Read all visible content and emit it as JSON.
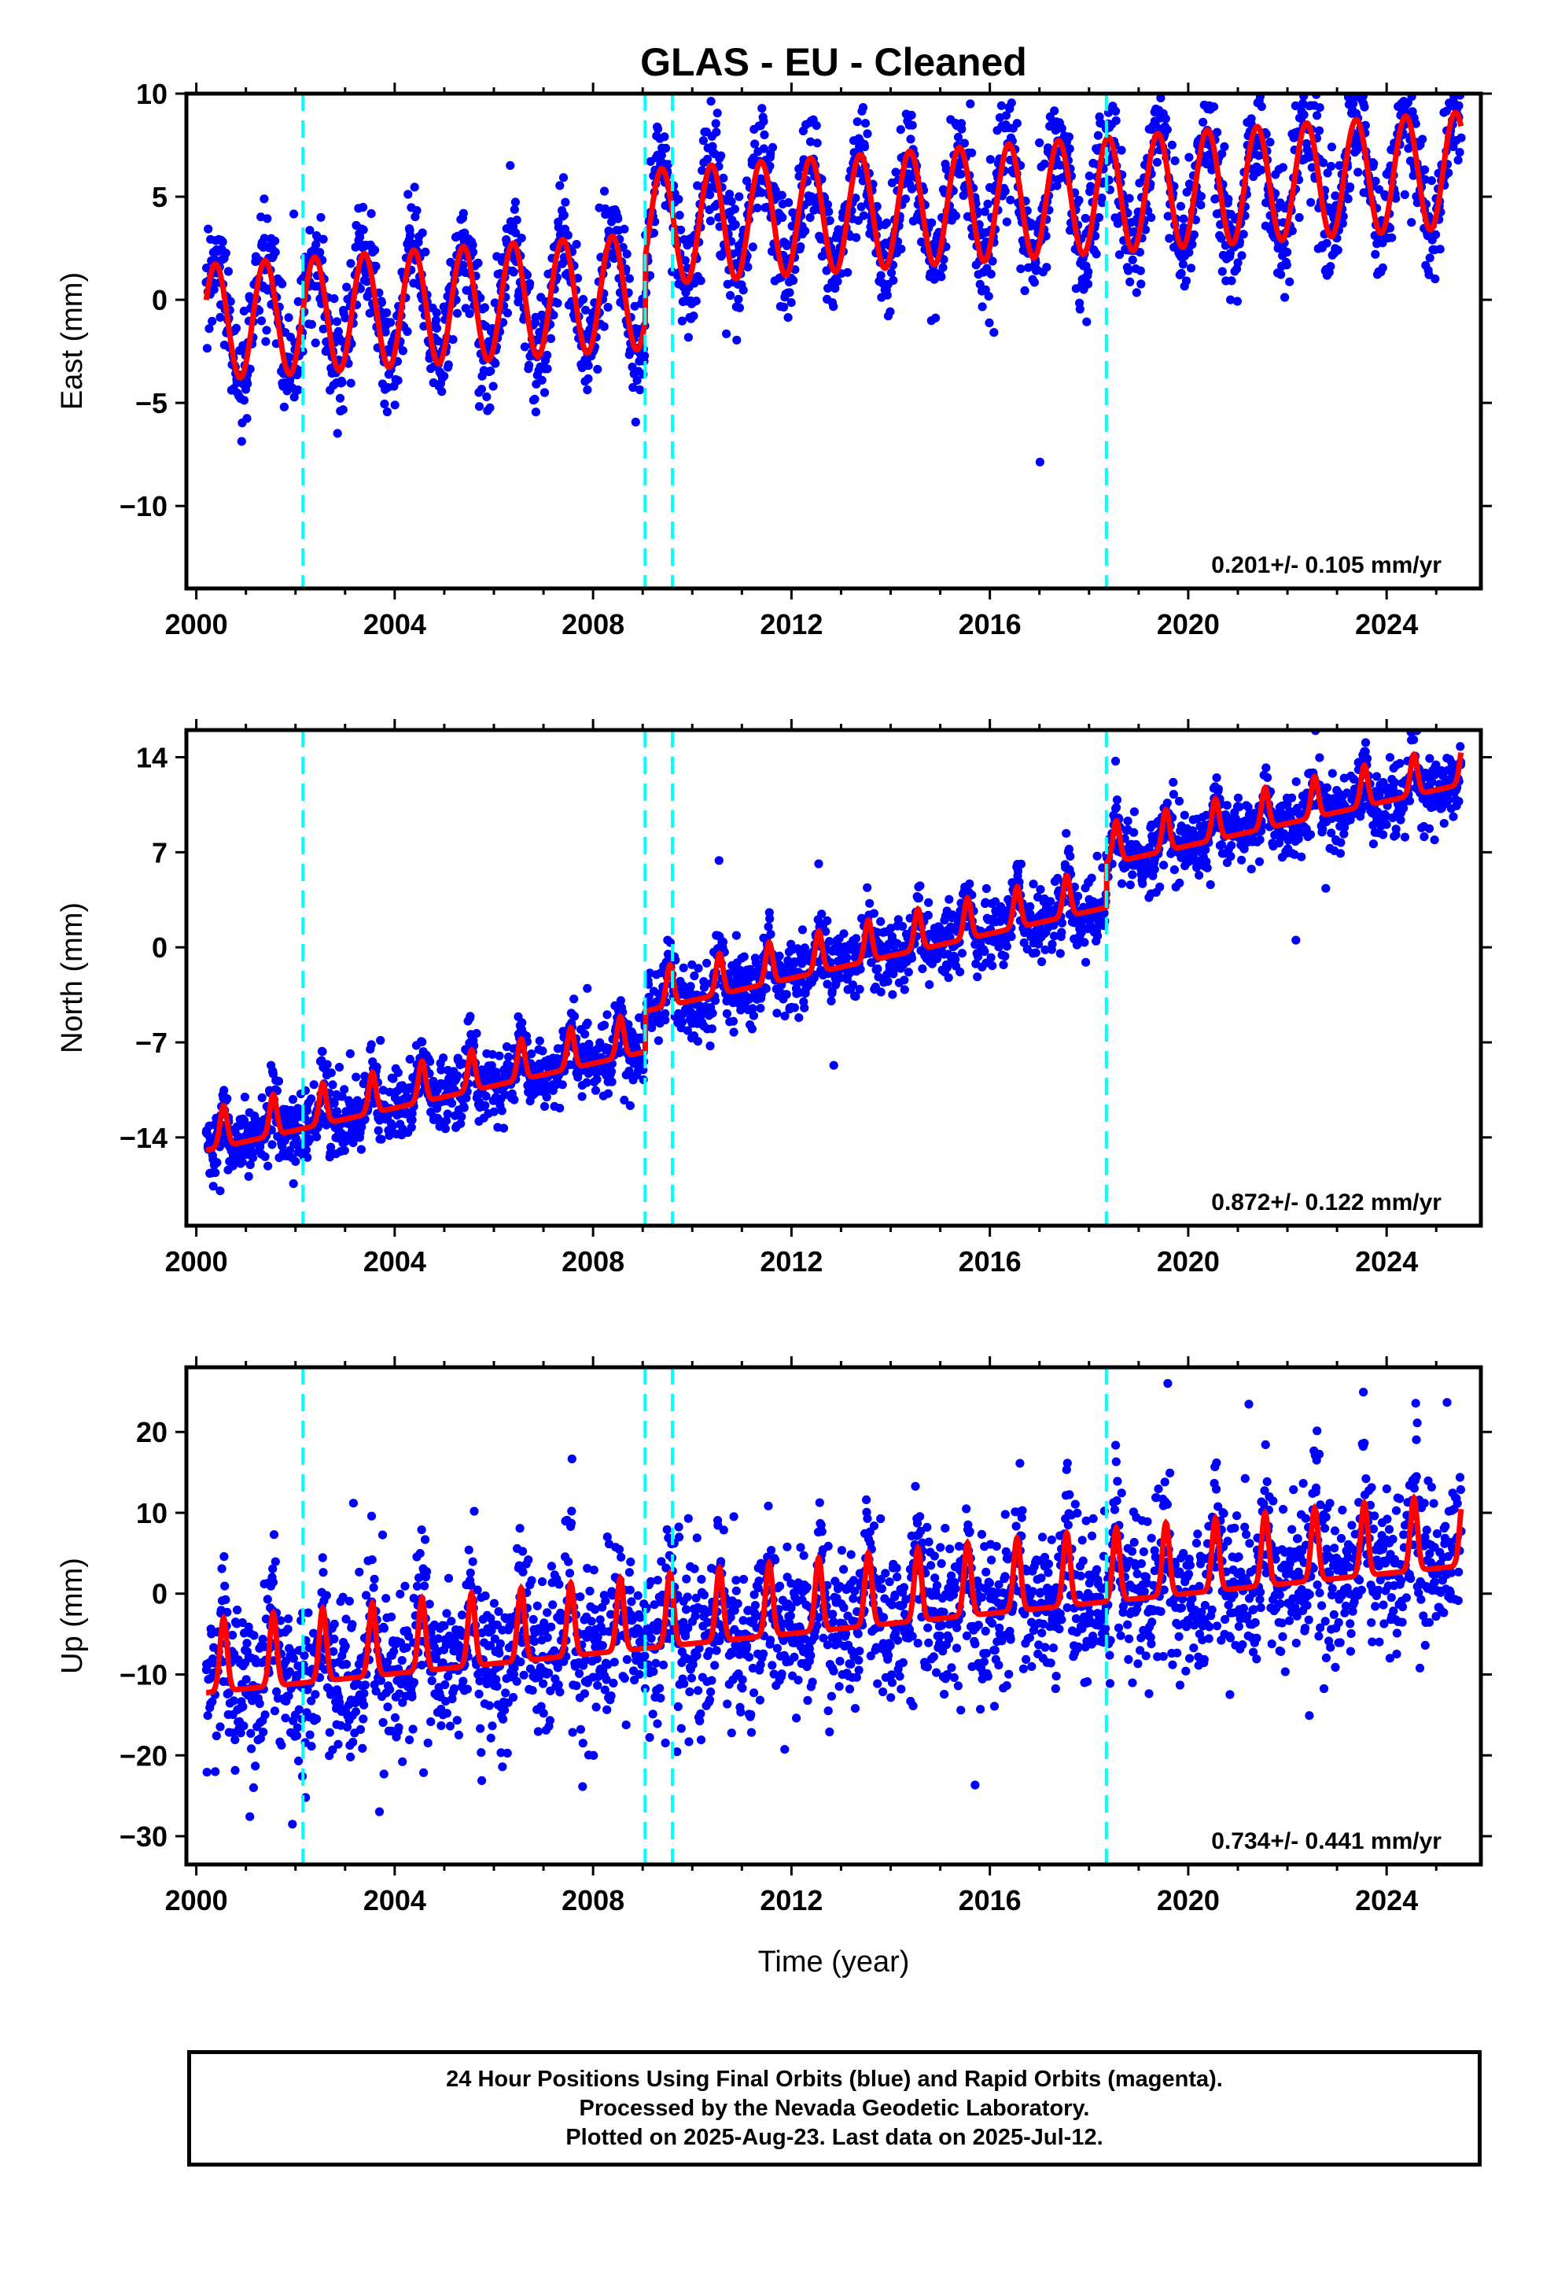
{
  "figure": {
    "title": "GLAS  - EU - Cleaned",
    "xlabel": "Time (year)"
  },
  "colors": {
    "data_points": "#0000ff",
    "model_fit": "#ff0000",
    "event_lines": "#00ffff",
    "axes": "#000000"
  },
  "chart_data": [
    {
      "type": "scatter",
      "component": "East",
      "ylabel": "East (mm)",
      "xlim": [
        1999.8,
        2025.9
      ],
      "ylim": [
        -14,
        10
      ],
      "xticks": [
        2000,
        2004,
        2008,
        2012,
        2016,
        2020,
        2024
      ],
      "yticks": [
        10,
        5,
        0,
        -5,
        -10
      ],
      "ytick_labels": [
        "10",
        "5",
        "0",
        "−5",
        "−10"
      ],
      "event_lines": [
        2002.15,
        2009.05,
        2009.6,
        2018.35
      ],
      "rate_label": "0.201+/- 0.105 mm/yr",
      "series": [
        {
          "kind": "points",
          "x_range": [
            2000.2,
            2025.5
          ],
          "trend": [
            0,
            4.35
          ],
          "trend_break_year": 2009.05,
          "trend_break": 3.1,
          "annual_amplitude": 2.8,
          "scatter_sd": 1.35,
          "outlier_sd": 4.0
        },
        {
          "kind": "fit",
          "start": -1.1,
          "slope": 0.17,
          "annual_amplitude": 2.8,
          "offsets": [
            {
              "year": 2009.05,
              "value": 3.1
            }
          ]
        }
      ]
    },
    {
      "type": "scatter",
      "component": "North",
      "ylabel": "North (mm)",
      "xlim": [
        1999.8,
        2025.9
      ],
      "ylim": [
        -20.5,
        16
      ],
      "xticks": [
        2000,
        2004,
        2008,
        2012,
        2016,
        2020,
        2024
      ],
      "yticks": [
        14,
        7,
        0,
        -7,
        -14
      ],
      "ytick_labels": [
        "14",
        "7",
        "0",
        "−7",
        "−14"
      ],
      "event_lines": [
        2002.15,
        2009.05,
        2009.6,
        2018.35
      ],
      "rate_label": "0.872+/- 0.122 mm/yr",
      "series": [
        {
          "kind": "points",
          "x_range": [
            2000.2,
            2025.5
          ],
          "scatter_sd": 1.3,
          "outlier_sd": 4.0
        },
        {
          "kind": "fit",
          "start": -14.2,
          "slope": 0.82,
          "seasonal_peak": 3.0,
          "offsets": [
            {
              "year": 2009.05,
              "value": 3.0
            },
            {
              "year": 2018.35,
              "value": 3.2
            }
          ]
        }
      ]
    },
    {
      "type": "scatter",
      "component": "Up",
      "ylabel": "Up (mm)",
      "xlim": [
        1999.8,
        2025.9
      ],
      "ylim": [
        -33.5,
        28
      ],
      "xticks": [
        2000,
        2004,
        2008,
        2012,
        2016,
        2020,
        2024
      ],
      "yticks": [
        20,
        10,
        0,
        -10,
        -20,
        -30
      ],
      "ytick_labels": [
        "20",
        "10",
        "0",
        "−10",
        "−20",
        "−30"
      ],
      "event_lines": [
        2002.15,
        2009.05,
        2009.6,
        2018.35
      ],
      "rate_label": "0.734+/- 0.441 mm/yr",
      "series": [
        {
          "kind": "points",
          "x_range": [
            2000.2,
            2025.5
          ],
          "scatter_sd": 5.0,
          "outlier_sd": 12.0
        },
        {
          "kind": "fit",
          "start": -10.0,
          "slope": 0.62,
          "seasonal_peak": 9.0,
          "offsets": []
        }
      ]
    }
  ],
  "footer": {
    "line1": "24 Hour Positions Using Final Orbits (blue) and Rapid Orbits (magenta).",
    "line2": "Processed by the Nevada Geodetic Laboratory.",
    "line3": "Plotted on 2025-Aug-23. Last data on 2025-Jul-12."
  }
}
